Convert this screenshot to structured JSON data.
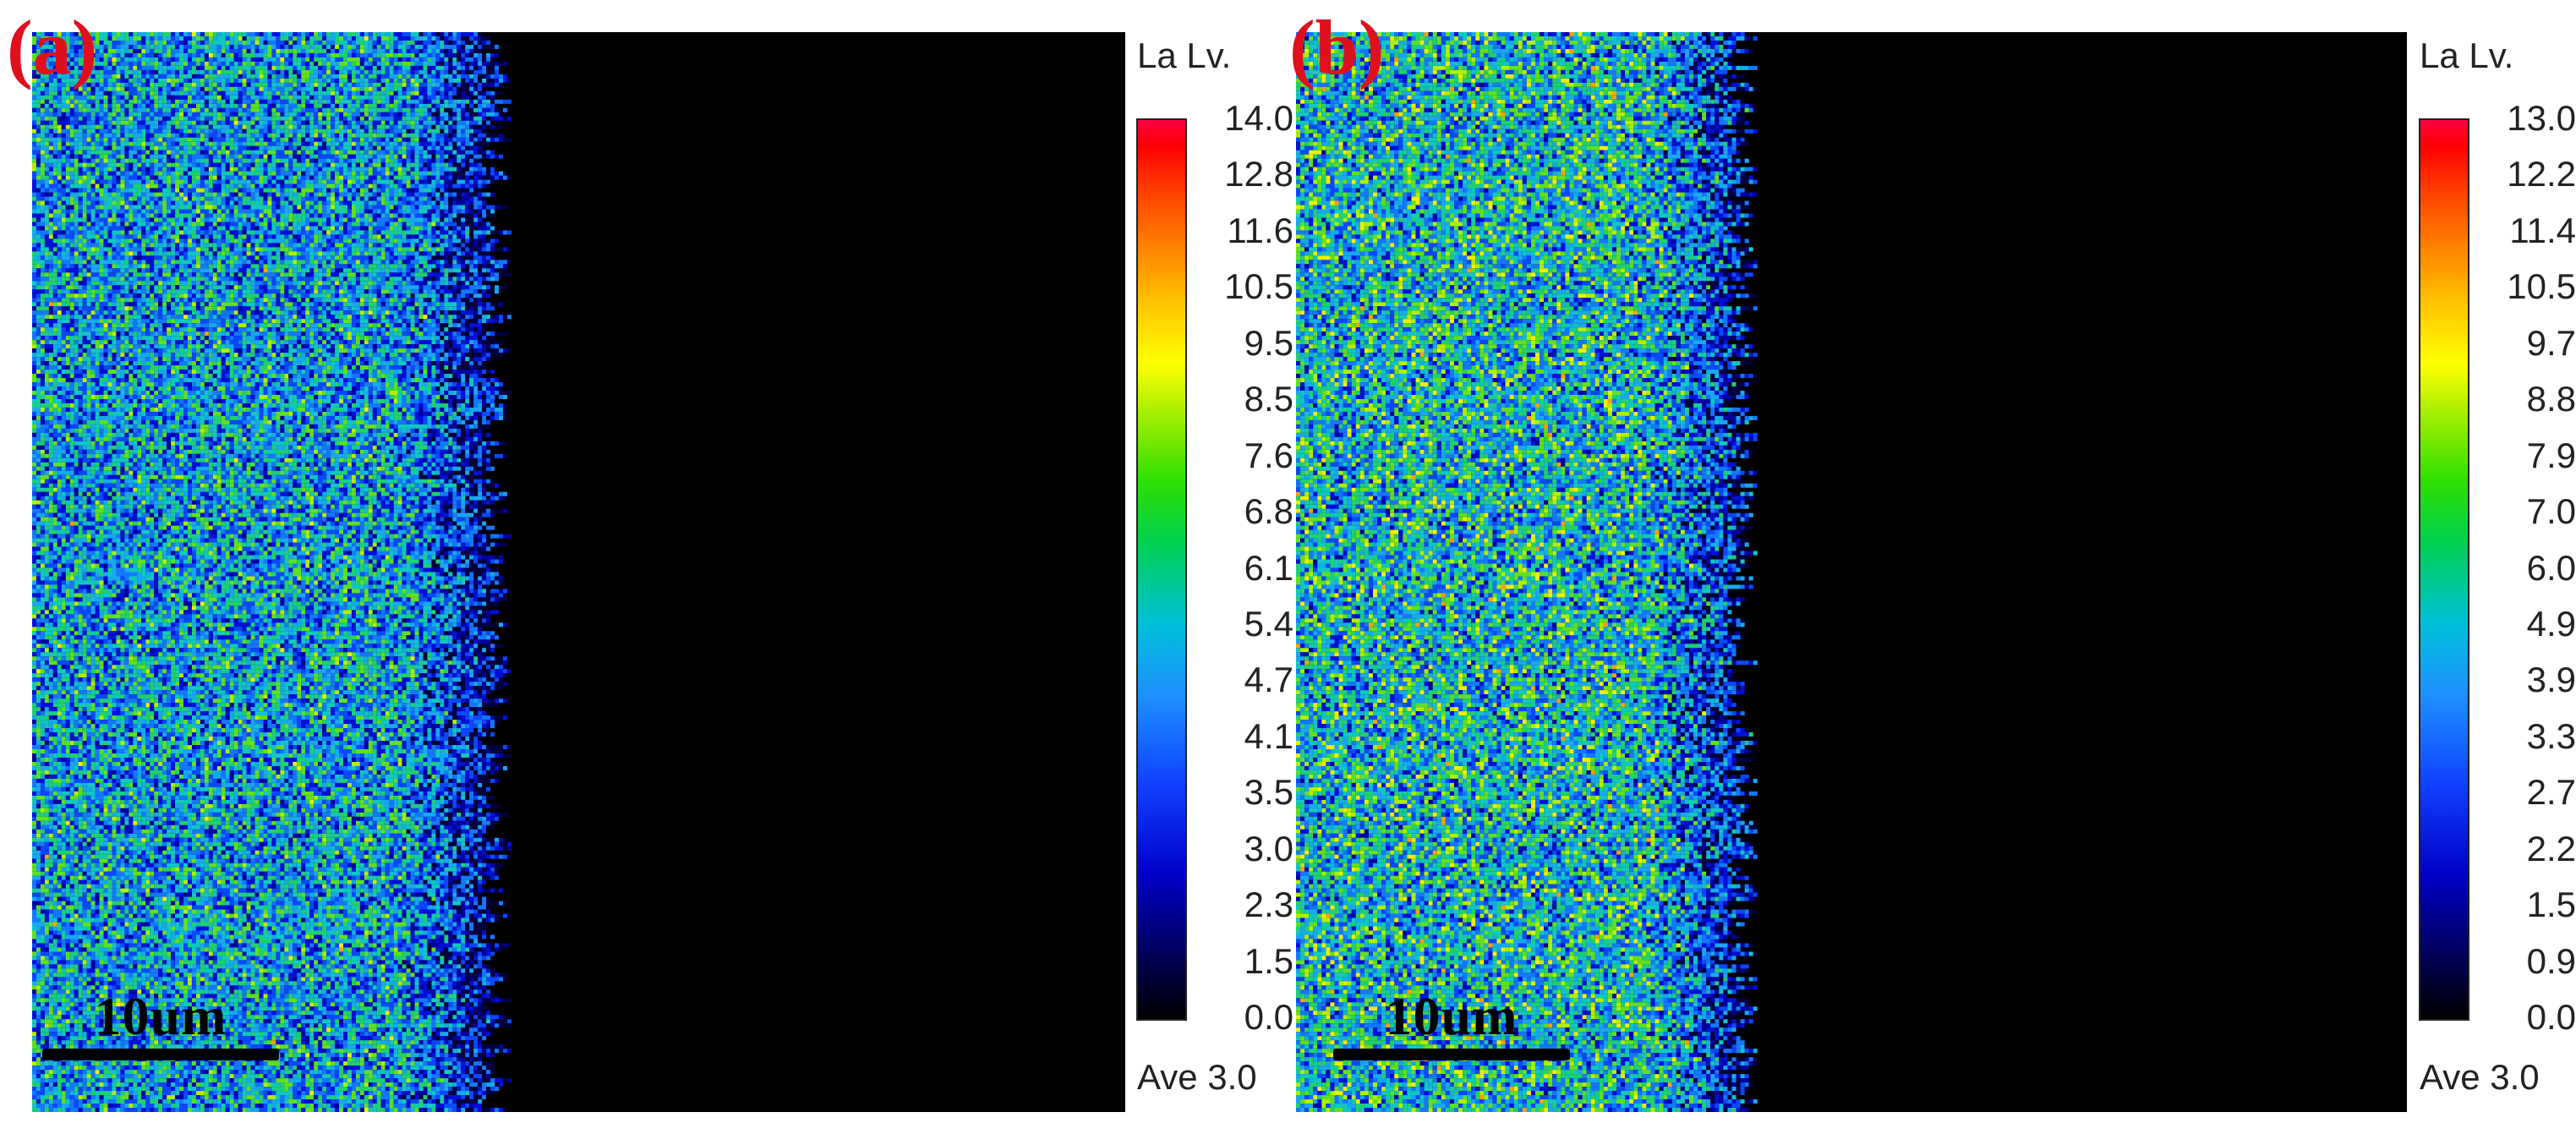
{
  "panels": [
    {
      "id": "a",
      "label": "(a)",
      "scalebar": "10um",
      "element_label": "La Lv.",
      "colorbar_ticks": [
        "14.0",
        "12.8",
        "11.6",
        "10.5",
        "9.5",
        "8.5",
        "7.6",
        "6.8",
        "6.1",
        "5.4",
        "4.7",
        "4.1",
        "3.5",
        "3.0",
        "2.3",
        "1.5",
        "0.0"
      ],
      "average": "Ave 3.0"
    },
    {
      "id": "b",
      "label": "(b)",
      "scalebar": "10um",
      "element_label": "La Lv.",
      "colorbar_ticks": [
        "13.0",
        "12.2",
        "11.4",
        "10.5",
        "9.7",
        "8.8",
        "7.9",
        "7.0",
        "6.0",
        "4.9",
        "3.9",
        "3.3",
        "2.7",
        "2.2",
        "1.5",
        "0.9",
        "0.0"
      ],
      "average": "Ave 3.0"
    }
  ],
  "colors": {
    "label": "#e00f1e",
    "map_low": "#0000c8",
    "map_mid": "#00c0d8",
    "map_high": "#b0f000",
    "background": "#000000"
  }
}
